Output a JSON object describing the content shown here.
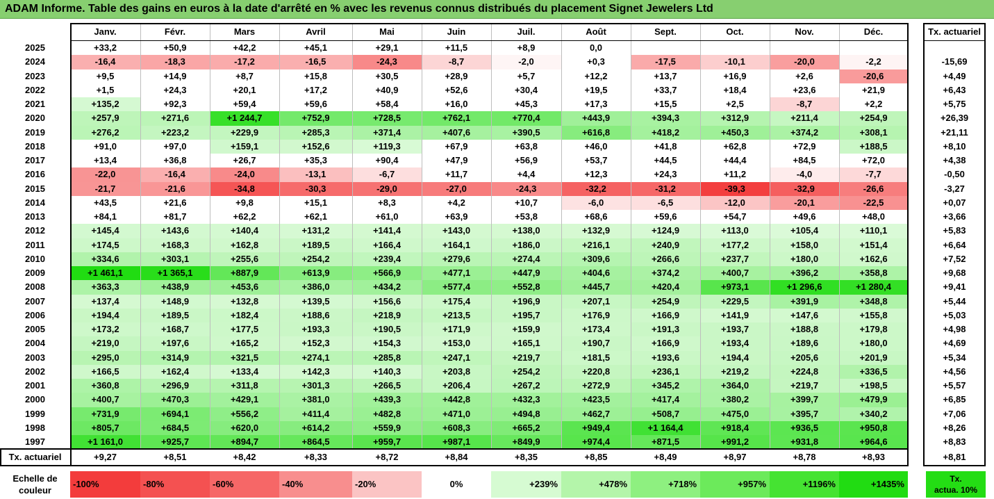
{
  "title": "ADAM Informe. Table des gains en euros à la date d'arrêté en % avec les revenus connus distribués du placement Signet Jewelers Ltd",
  "months": [
    "Janv.",
    "Févr.",
    "Mars",
    "Avril",
    "Mai",
    "Juin",
    "Juil.",
    "Août",
    "Sept.",
    "Oct.",
    "Nov.",
    "Déc."
  ],
  "tx_header": "Tx. actuariel",
  "rows": [
    {
      "year": "2025",
      "values": [
        "+33,2",
        "+50,9",
        "+42,2",
        "+45,1",
        "+29,1",
        "+11,5",
        "+8,9",
        "0,0",
        "",
        "",
        "",
        ""
      ],
      "tx": ""
    },
    {
      "year": "2024",
      "values": [
        "-16,4",
        "-18,3",
        "-17,2",
        "-16,5",
        "-24,3",
        "-8,7",
        "-2,0",
        "+0,3",
        "-17,5",
        "-10,1",
        "-20,0",
        "-2,2"
      ],
      "tx": "-15,69"
    },
    {
      "year": "2023",
      "values": [
        "+9,5",
        "+14,9",
        "+8,7",
        "+15,8",
        "+30,5",
        "+28,9",
        "+5,7",
        "+12,2",
        "+13,7",
        "+16,9",
        "+2,6",
        "-20,6"
      ],
      "tx": "+4,49"
    },
    {
      "year": "2022",
      "values": [
        "+1,5",
        "+24,3",
        "+20,1",
        "+17,2",
        "+40,9",
        "+52,6",
        "+30,4",
        "+19,5",
        "+33,7",
        "+18,4",
        "+23,6",
        "+21,9"
      ],
      "tx": "+6,43"
    },
    {
      "year": "2021",
      "values": [
        "+135,2",
        "+92,3",
        "+59,4",
        "+59,6",
        "+58,4",
        "+16,0",
        "+45,3",
        "+17,3",
        "+15,5",
        "+2,5",
        "-8,7",
        "+2,2"
      ],
      "tx": "+5,75"
    },
    {
      "year": "2020",
      "values": [
        "+257,9",
        "+271,6",
        "+1 244,7",
        "+752,9",
        "+728,5",
        "+762,1",
        "+770,4",
        "+443,9",
        "+394,3",
        "+312,9",
        "+211,4",
        "+254,9"
      ],
      "tx": "+26,39"
    },
    {
      "year": "2019",
      "values": [
        "+276,2",
        "+223,2",
        "+229,9",
        "+285,3",
        "+371,4",
        "+407,6",
        "+390,5",
        "+616,8",
        "+418,2",
        "+450,3",
        "+374,2",
        "+308,1"
      ],
      "tx": "+21,11"
    },
    {
      "year": "2018",
      "values": [
        "+91,0",
        "+97,0",
        "+159,1",
        "+152,6",
        "+119,3",
        "+67,9",
        "+63,8",
        "+46,0",
        "+41,8",
        "+62,8",
        "+72,9",
        "+188,5"
      ],
      "tx": "+8,10"
    },
    {
      "year": "2017",
      "values": [
        "+13,4",
        "+36,8",
        "+26,7",
        "+35,3",
        "+90,4",
        "+47,9",
        "+56,9",
        "+53,7",
        "+44,5",
        "+44,4",
        "+84,5",
        "+72,0"
      ],
      "tx": "+4,38"
    },
    {
      "year": "2016",
      "values": [
        "-22,0",
        "-16,4",
        "-24,0",
        "-13,1",
        "-6,7",
        "+11,7",
        "+4,4",
        "+12,3",
        "+24,3",
        "+11,2",
        "-4,0",
        "-7,7"
      ],
      "tx": "-0,50"
    },
    {
      "year": "2015",
      "values": [
        "-21,7",
        "-21,6",
        "-34,8",
        "-30,3",
        "-29,0",
        "-27,0",
        "-24,3",
        "-32,2",
        "-31,2",
        "-39,3",
        "-32,9",
        "-26,6"
      ],
      "tx": "-3,27"
    },
    {
      "year": "2014",
      "values": [
        "+43,5",
        "+21,6",
        "+9,8",
        "+15,1",
        "+8,3",
        "+4,2",
        "+10,7",
        "-6,0",
        "-6,5",
        "-12,0",
        "-20,1",
        "-22,5"
      ],
      "tx": "+0,07"
    },
    {
      "year": "2013",
      "values": [
        "+84,1",
        "+81,7",
        "+62,2",
        "+62,1",
        "+61,0",
        "+63,9",
        "+53,8",
        "+68,6",
        "+59,6",
        "+54,7",
        "+49,6",
        "+48,0"
      ],
      "tx": "+3,66"
    },
    {
      "year": "2012",
      "values": [
        "+145,4",
        "+143,6",
        "+140,4",
        "+131,2",
        "+141,4",
        "+143,0",
        "+138,0",
        "+132,9",
        "+124,9",
        "+113,0",
        "+105,4",
        "+110,1"
      ],
      "tx": "+5,83"
    },
    {
      "year": "2011",
      "values": [
        "+174,5",
        "+168,3",
        "+162,8",
        "+189,5",
        "+166,4",
        "+164,1",
        "+186,0",
        "+216,1",
        "+240,9",
        "+177,2",
        "+158,0",
        "+151,4"
      ],
      "tx": "+6,64"
    },
    {
      "year": "2010",
      "values": [
        "+334,6",
        "+303,1",
        "+255,6",
        "+254,2",
        "+239,4",
        "+279,6",
        "+274,4",
        "+309,6",
        "+266,6",
        "+237,7",
        "+180,0",
        "+162,6"
      ],
      "tx": "+7,52"
    },
    {
      "year": "2009",
      "values": [
        "+1 461,1",
        "+1 365,1",
        "+887,9",
        "+613,9",
        "+566,9",
        "+477,1",
        "+447,9",
        "+404,6",
        "+374,2",
        "+400,7",
        "+396,2",
        "+358,8"
      ],
      "tx": "+9,68"
    },
    {
      "year": "2008",
      "values": [
        "+363,3",
        "+438,9",
        "+453,6",
        "+386,0",
        "+434,2",
        "+577,4",
        "+552,8",
        "+445,7",
        "+420,4",
        "+973,1",
        "+1 296,6",
        "+1 280,4"
      ],
      "tx": "+9,41"
    },
    {
      "year": "2007",
      "values": [
        "+137,4",
        "+148,9",
        "+132,8",
        "+139,5",
        "+156,6",
        "+175,4",
        "+196,9",
        "+207,1",
        "+254,9",
        "+229,5",
        "+391,9",
        "+348,8"
      ],
      "tx": "+5,44"
    },
    {
      "year": "2006",
      "values": [
        "+194,4",
        "+189,5",
        "+182,4",
        "+188,6",
        "+218,9",
        "+213,5",
        "+195,7",
        "+176,9",
        "+166,9",
        "+141,9",
        "+147,6",
        "+155,8"
      ],
      "tx": "+5,03"
    },
    {
      "year": "2005",
      "values": [
        "+173,2",
        "+168,7",
        "+177,5",
        "+193,3",
        "+190,5",
        "+171,9",
        "+159,9",
        "+173,4",
        "+191,3",
        "+193,7",
        "+188,8",
        "+179,8"
      ],
      "tx": "+4,98"
    },
    {
      "year": "2004",
      "values": [
        "+219,0",
        "+197,6",
        "+165,2",
        "+152,3",
        "+154,3",
        "+153,0",
        "+165,1",
        "+190,7",
        "+166,9",
        "+193,4",
        "+189,6",
        "+180,0"
      ],
      "tx": "+4,69"
    },
    {
      "year": "2003",
      "values": [
        "+295,0",
        "+314,9",
        "+321,5",
        "+274,1",
        "+285,8",
        "+247,1",
        "+219,7",
        "+181,5",
        "+193,6",
        "+194,4",
        "+205,6",
        "+201,9"
      ],
      "tx": "+5,34"
    },
    {
      "year": "2002",
      "values": [
        "+166,5",
        "+162,4",
        "+133,4",
        "+142,3",
        "+140,3",
        "+203,8",
        "+254,2",
        "+220,8",
        "+236,1",
        "+219,2",
        "+224,8",
        "+336,5"
      ],
      "tx": "+4,56"
    },
    {
      "year": "2001",
      "values": [
        "+360,8",
        "+296,9",
        "+311,8",
        "+301,3",
        "+266,5",
        "+206,4",
        "+267,2",
        "+272,9",
        "+345,2",
        "+364,0",
        "+219,7",
        "+198,5"
      ],
      "tx": "+5,57"
    },
    {
      "year": "2000",
      "values": [
        "+400,7",
        "+470,3",
        "+429,1",
        "+381,0",
        "+439,3",
        "+442,8",
        "+432,3",
        "+423,5",
        "+417,4",
        "+380,2",
        "+399,7",
        "+479,9"
      ],
      "tx": "+6,85"
    },
    {
      "year": "1999",
      "values": [
        "+731,9",
        "+694,1",
        "+556,2",
        "+411,4",
        "+482,8",
        "+471,0",
        "+494,8",
        "+462,7",
        "+508,7",
        "+475,0",
        "+395,7",
        "+340,2"
      ],
      "tx": "+7,06"
    },
    {
      "year": "1998",
      "values": [
        "+805,7",
        "+684,5",
        "+620,0",
        "+614,2",
        "+559,9",
        "+608,3",
        "+665,2",
        "+949,4",
        "+1 164,4",
        "+918,4",
        "+936,5",
        "+950,8"
      ],
      "tx": "+8,26"
    },
    {
      "year": "1997",
      "values": [
        "+1 161,0",
        "+925,7",
        "+894,7",
        "+864,5",
        "+959,7",
        "+987,1",
        "+849,9",
        "+974,4",
        "+871,5",
        "+991,2",
        "+931,8",
        "+964,6"
      ],
      "tx": "+8,83"
    }
  ],
  "footer": {
    "label": "Tx. actuariel",
    "values": [
      "+9,27",
      "+8,51",
      "+8,42",
      "+8,33",
      "+8,72",
      "+8,84",
      "+8,35",
      "+8,85",
      "+8,49",
      "+8,97",
      "+8,78",
      "+8,93"
    ],
    "total": "+8,81"
  },
  "scale": {
    "label_line1": "Echelle de",
    "label_line2": "couleur",
    "steps": [
      {
        "label": "-100%",
        "color": "#f33c3c",
        "align": "left"
      },
      {
        "label": "-80%",
        "color": "#f45151",
        "align": "left"
      },
      {
        "label": "-60%",
        "color": "#f66767",
        "align": "left"
      },
      {
        "label": "-40%",
        "color": "#f88e8e",
        "align": "left"
      },
      {
        "label": "-20%",
        "color": "#fbc4c4",
        "align": "left"
      },
      {
        "label": "0%",
        "color": "#ffffff",
        "align": "center"
      },
      {
        "label": "+239%",
        "color": "#d6fbd2",
        "align": "right"
      },
      {
        "label": "+478%",
        "color": "#b4f5aa",
        "align": "right"
      },
      {
        "label": "+718%",
        "color": "#8ef080",
        "align": "right"
      },
      {
        "label": "+957%",
        "color": "#6cea5b",
        "align": "right"
      },
      {
        "label": "+1196%",
        "color": "#45e332",
        "align": "right"
      },
      {
        "label": "+1435%",
        "color": "#21dc12",
        "align": "right"
      }
    ],
    "legend_line1": "Tx.",
    "legend_line2": "actua. 10%",
    "legend_color": "#24dd14"
  },
  "colors": {
    "title_bg": "#87cf70",
    "negative_max": "#f33c3c",
    "positive_max": "#21dc12"
  }
}
